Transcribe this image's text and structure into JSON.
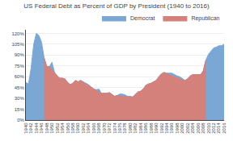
{
  "chart_data": {
    "type": "area",
    "title": "US Federal Debt as Percent of GDP by President (1940 to 2016)",
    "x": [
      1940,
      1941,
      1942,
      1943,
      1944,
      1945,
      1946,
      1947,
      1948,
      1949,
      1950,
      1951,
      1952,
      1953,
      1954,
      1955,
      1956,
      1957,
      1958,
      1959,
      1960,
      1961,
      1962,
      1963,
      1964,
      1965,
      1966,
      1967,
      1968,
      1969,
      1970,
      1971,
      1972,
      1973,
      1974,
      1975,
      1976,
      1977,
      1978,
      1979,
      1980,
      1981,
      1982,
      1983,
      1984,
      1985,
      1986,
      1987,
      1988,
      1989,
      1990,
      1991,
      1992,
      1993,
      1994,
      1995,
      1996,
      1997,
      1998,
      1999,
      2000,
      2001,
      2002,
      2003,
      2004,
      2005,
      2006,
      2007,
      2008,
      2009,
      2010,
      2011,
      2012,
      2013,
      2014,
      2015,
      2016
    ],
    "series": [
      {
        "name": "Democrat",
        "color": "#7BA7D4",
        "values": [
          52,
          50,
          72,
          105,
          120,
          117,
          108,
          86,
          74,
          74,
          80,
          66,
          61,
          58,
          58,
          57,
          52,
          49,
          51,
          55,
          53,
          55,
          53,
          51,
          49,
          46,
          43,
          42,
          43,
          37,
          37,
          37,
          38,
          35,
          33,
          34,
          36,
          36,
          35,
          33,
          33,
          32,
          35,
          39,
          40,
          43,
          48,
          50,
          51,
          53,
          55,
          60,
          64,
          66,
          65,
          65,
          65,
          63,
          61,
          60,
          57,
          55,
          57,
          61,
          63,
          63,
          63,
          63,
          68,
          83,
          91,
          95,
          100,
          101,
          103,
          103,
          105
        ]
      },
      {
        "name": "Republican",
        "color": "#D4817B",
        "values": [
          null,
          null,
          null,
          null,
          null,
          null,
          null,
          86,
          74,
          74,
          null,
          null,
          null,
          58,
          58,
          57,
          52,
          49,
          51,
          55,
          53,
          55,
          null,
          null,
          null,
          null,
          null,
          null,
          null,
          37,
          37,
          37,
          38,
          35,
          33,
          34,
          null,
          null,
          null,
          null,
          null,
          32,
          35,
          39,
          40,
          43,
          48,
          50,
          51,
          53,
          55,
          60,
          64,
          66,
          null,
          null,
          null,
          null,
          null,
          null,
          null,
          55,
          57,
          61,
          63,
          63,
          63,
          63,
          68,
          83,
          null,
          null,
          null,
          null,
          null,
          null,
          null
        ]
      }
    ],
    "xlim": [
      1940,
      2016
    ],
    "xticks": [
      1940,
      1942,
      1944,
      1946,
      1948,
      1950,
      1952,
      1954,
      1956,
      1958,
      1960,
      1962,
      1964,
      1966,
      1968,
      1970,
      1972,
      1974,
      1976,
      1978,
      1980,
      1982,
      1984,
      1986,
      1988,
      1990,
      1992,
      1994,
      1996,
      1998,
      2000,
      2002,
      2004,
      2006,
      2008,
      2010,
      2012,
      2014,
      2016
    ],
    "ylim": [
      0,
      125
    ],
    "yticks": [
      {
        "value": 0,
        "label": "0%"
      },
      {
        "value": 15,
        "label": "15%"
      },
      {
        "value": 30,
        "label": "30%"
      },
      {
        "value": 45,
        "label": "45%"
      },
      {
        "value": 60,
        "label": "60%"
      },
      {
        "value": 75,
        "label": "75%"
      },
      {
        "value": 90,
        "label": "90%"
      },
      {
        "value": 105,
        "label": "105%"
      },
      {
        "value": 120,
        "label": "120%"
      }
    ],
    "grid": true,
    "legend": "upper right"
  }
}
